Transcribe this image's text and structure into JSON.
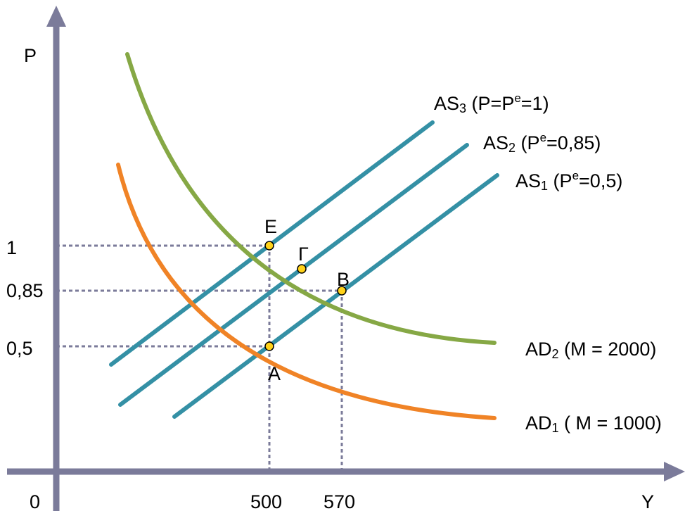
{
  "axes": {
    "y_label": "P",
    "x_label": "Y",
    "origin_label": "0",
    "color": "#7b7b9a"
  },
  "ticks": {
    "y": [
      "1",
      "0,85",
      "0,5"
    ],
    "x": [
      "500",
      "570"
    ]
  },
  "curves": {
    "as3": {
      "main": "AS",
      "sub": "3",
      "open": " (P=P",
      "sup": "e",
      "close": "=1)",
      "color": "#3490a5"
    },
    "as2": {
      "main": "AS",
      "sub": "2",
      "open": " (P",
      "sup": "e",
      "close": "=0,85)",
      "color": "#3490a5"
    },
    "as1": {
      "main": "AS",
      "sub": "1",
      "open": " (P",
      "sup": "e",
      "close": "=0,5)",
      "color": "#3490a5"
    },
    "ad2": {
      "main": "AD",
      "sub": "2",
      "rest": "  (M = 2000)",
      "color": "#86a845"
    },
    "ad1": {
      "main": "AD",
      "sub": "1",
      "rest": " ( M = 1000)",
      "color": "#f08326"
    }
  },
  "points": {
    "e": "Ε",
    "g": "Γ",
    "b": "Β",
    "a": "Α",
    "color": "#ffd21a"
  },
  "guide_color": "#7b7b9a"
}
